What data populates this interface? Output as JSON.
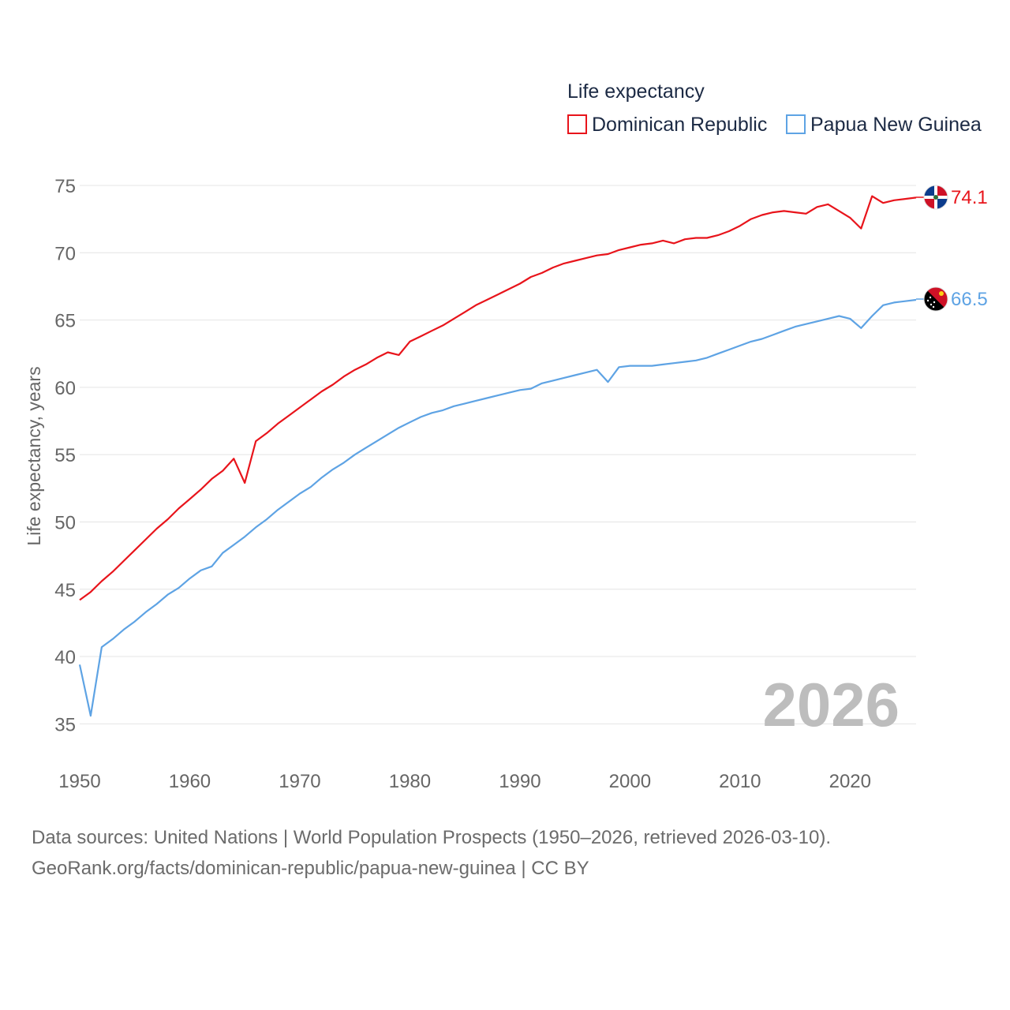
{
  "chart_data": {
    "type": "line",
    "legend_title": "Life expectancy",
    "ylabel": "Life expectancy, years",
    "xlabel": "",
    "current_year_label": "2026",
    "xlim": [
      1950,
      2026
    ],
    "ylim": [
      32.5,
      75
    ],
    "y_ticks": [
      35,
      40,
      45,
      50,
      55,
      60,
      65,
      70,
      75
    ],
    "x_ticks": [
      1950,
      1960,
      1970,
      1980,
      1990,
      2000,
      2010,
      2020
    ],
    "legend_position": "top-right",
    "grid": true,
    "x": [
      1950,
      1951,
      1952,
      1953,
      1954,
      1955,
      1956,
      1957,
      1958,
      1959,
      1960,
      1961,
      1962,
      1963,
      1964,
      1965,
      1966,
      1967,
      1968,
      1969,
      1970,
      1971,
      1972,
      1973,
      1974,
      1975,
      1976,
      1977,
      1978,
      1979,
      1980,
      1981,
      1982,
      1983,
      1984,
      1985,
      1986,
      1987,
      1988,
      1989,
      1990,
      1991,
      1992,
      1993,
      1994,
      1995,
      1996,
      1997,
      1998,
      1999,
      2000,
      2001,
      2002,
      2003,
      2004,
      2005,
      2006,
      2007,
      2008,
      2009,
      2010,
      2011,
      2012,
      2013,
      2014,
      2015,
      2016,
      2017,
      2018,
      2019,
      2020,
      2021,
      2022,
      2023,
      2024,
      2025,
      2026
    ],
    "series": [
      {
        "name": "Dominican Republic",
        "color": "#e8141b",
        "end_label": "74.1",
        "flag_icon": "dominican-republic-flag-icon",
        "values": [
          44.2,
          44.8,
          45.6,
          46.3,
          47.1,
          47.9,
          48.7,
          49.5,
          50.2,
          51.0,
          51.7,
          52.4,
          53.2,
          53.8,
          54.7,
          52.9,
          56.0,
          56.6,
          57.3,
          57.9,
          58.5,
          59.1,
          59.7,
          60.2,
          60.8,
          61.3,
          61.7,
          62.2,
          62.6,
          62.4,
          63.4,
          63.8,
          64.2,
          64.6,
          65.1,
          65.6,
          66.1,
          66.5,
          66.9,
          67.3,
          67.7,
          68.2,
          68.5,
          68.9,
          69.2,
          69.4,
          69.6,
          69.8,
          69.9,
          70.2,
          70.4,
          70.6,
          70.7,
          70.9,
          70.7,
          71.0,
          71.1,
          71.1,
          71.3,
          71.6,
          72.0,
          72.5,
          72.8,
          73.0,
          73.1,
          73.0,
          72.9,
          73.4,
          73.6,
          73.1,
          72.6,
          71.8,
          74.2,
          73.7,
          73.9,
          74.0,
          74.1
        ]
      },
      {
        "name": "Papua New Guinea",
        "color": "#5ea3e4",
        "end_label": "66.5",
        "flag_icon": "papua-new-guinea-flag-icon",
        "values": [
          39.4,
          35.6,
          40.7,
          41.3,
          42.0,
          42.6,
          43.3,
          43.9,
          44.6,
          45.1,
          45.8,
          46.4,
          46.7,
          47.7,
          48.3,
          48.9,
          49.6,
          50.2,
          50.9,
          51.5,
          52.1,
          52.6,
          53.3,
          53.9,
          54.4,
          55.0,
          55.5,
          56.0,
          56.5,
          57.0,
          57.4,
          57.8,
          58.1,
          58.3,
          58.6,
          58.8,
          59.0,
          59.2,
          59.4,
          59.6,
          59.8,
          59.9,
          60.3,
          60.5,
          60.7,
          60.9,
          61.1,
          61.3,
          60.4,
          61.5,
          61.6,
          61.6,
          61.6,
          61.7,
          61.8,
          61.9,
          62.0,
          62.2,
          62.5,
          62.8,
          63.1,
          63.4,
          63.6,
          63.9,
          64.2,
          64.5,
          64.7,
          64.9,
          65.1,
          65.3,
          65.1,
          64.4,
          65.3,
          66.1,
          66.3,
          66.4,
          66.5
        ]
      }
    ]
  },
  "footer": {
    "line1": "Data sources: United Nations | World Population Prospects (1950–2026, retrieved 2026-03-10).",
    "line2": "GeoRank.org/facts/dominican-republic/papua-new-guinea | CC BY"
  }
}
